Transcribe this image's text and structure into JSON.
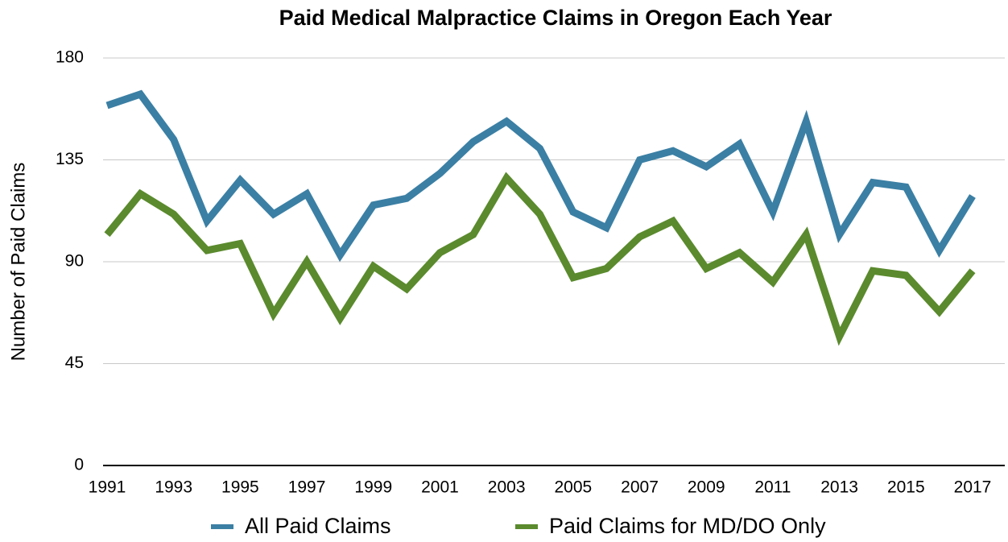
{
  "chart_data": {
    "type": "line",
    "title": "Paid Medical Malpractice Claims in Oregon Each Year",
    "y_label": "Number of Paid Claims",
    "categories": [
      "1991",
      null,
      "1993",
      null,
      "1995",
      null,
      "1997",
      null,
      "1999",
      null,
      "2001",
      null,
      "2003",
      null,
      "2005",
      null,
      "2007",
      null,
      "2009",
      null,
      "2011",
      null,
      "2013",
      null,
      "2015",
      null,
      "2017"
    ],
    "series": [
      {
        "name": "All Paid Claims",
        "color": "#3b7fa4",
        "values": [
          159,
          164,
          144,
          108,
          126,
          111,
          120,
          93,
          115,
          118,
          129,
          143,
          152,
          140,
          112,
          105,
          135,
          139,
          132,
          142,
          112,
          152,
          102,
          125,
          123,
          95,
          119
        ]
      },
      {
        "name": "Paid Claims for MD/DO Only",
        "color": "#5a8a2d",
        "values": [
          102,
          120,
          111,
          95,
          98,
          67,
          90,
          65,
          88,
          78,
          94,
          102,
          127,
          111,
          83,
          87,
          101,
          108,
          87,
          94,
          81,
          102,
          57,
          86,
          84,
          68,
          86
        ]
      }
    ],
    "ylim": [
      0,
      180
    ],
    "yticks": [
      0,
      45,
      90,
      135,
      180
    ],
    "grid": true,
    "legend": "bottom"
  }
}
